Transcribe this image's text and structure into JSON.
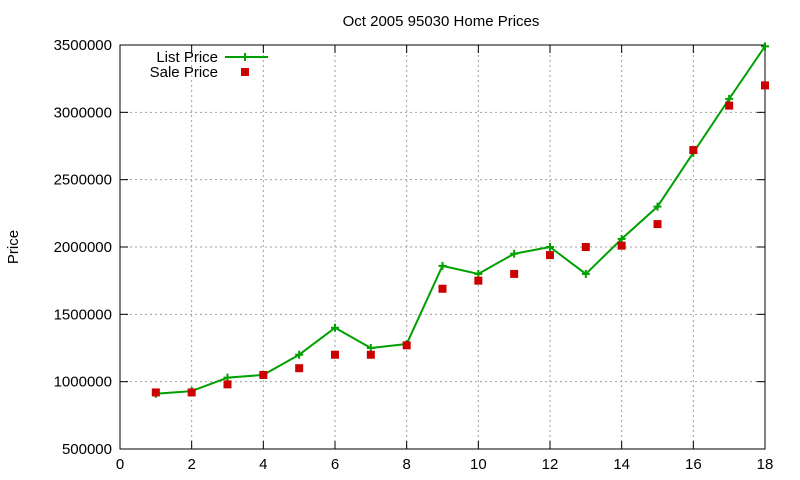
{
  "chart_data": {
    "type": "line",
    "title": "Oct 2005 95030 Home Prices",
    "xlabel": "",
    "ylabel": "Price",
    "xlim": [
      0,
      18
    ],
    "ylim": [
      500000,
      3500000
    ],
    "xticks": [
      0,
      2,
      4,
      6,
      8,
      10,
      12,
      14,
      16,
      18
    ],
    "yticks": [
      500000,
      1000000,
      1500000,
      2000000,
      2500000,
      3000000,
      3500000
    ],
    "grid": true,
    "legend_position": "top-left",
    "series": [
      {
        "name": "List Price",
        "type": "line",
        "marker": "plus",
        "color": "#00a000",
        "x": [
          1,
          2,
          3,
          4,
          5,
          6,
          7,
          8,
          9,
          10,
          11,
          12,
          13,
          14,
          15,
          16,
          17,
          18
        ],
        "values": [
          910000,
          930000,
          1030000,
          1050000,
          1200000,
          1400000,
          1250000,
          1280000,
          1860000,
          1800000,
          1950000,
          2000000,
          1800000,
          2060000,
          2300000,
          2700000,
          3100000,
          3490000
        ]
      },
      {
        "name": "Sale Price",
        "type": "scatter",
        "marker": "square",
        "color": "#cc0000",
        "x": [
          1,
          2,
          3,
          4,
          5,
          6,
          7,
          8,
          9,
          10,
          11,
          12,
          13,
          14,
          15,
          16,
          17,
          18
        ],
        "values": [
          920000,
          920000,
          980000,
          1050000,
          1100000,
          1200000,
          1200000,
          1270000,
          1690000,
          1750000,
          1800000,
          1940000,
          2000000,
          2010000,
          2170000,
          2720000,
          3050000,
          3200000
        ]
      }
    ]
  }
}
